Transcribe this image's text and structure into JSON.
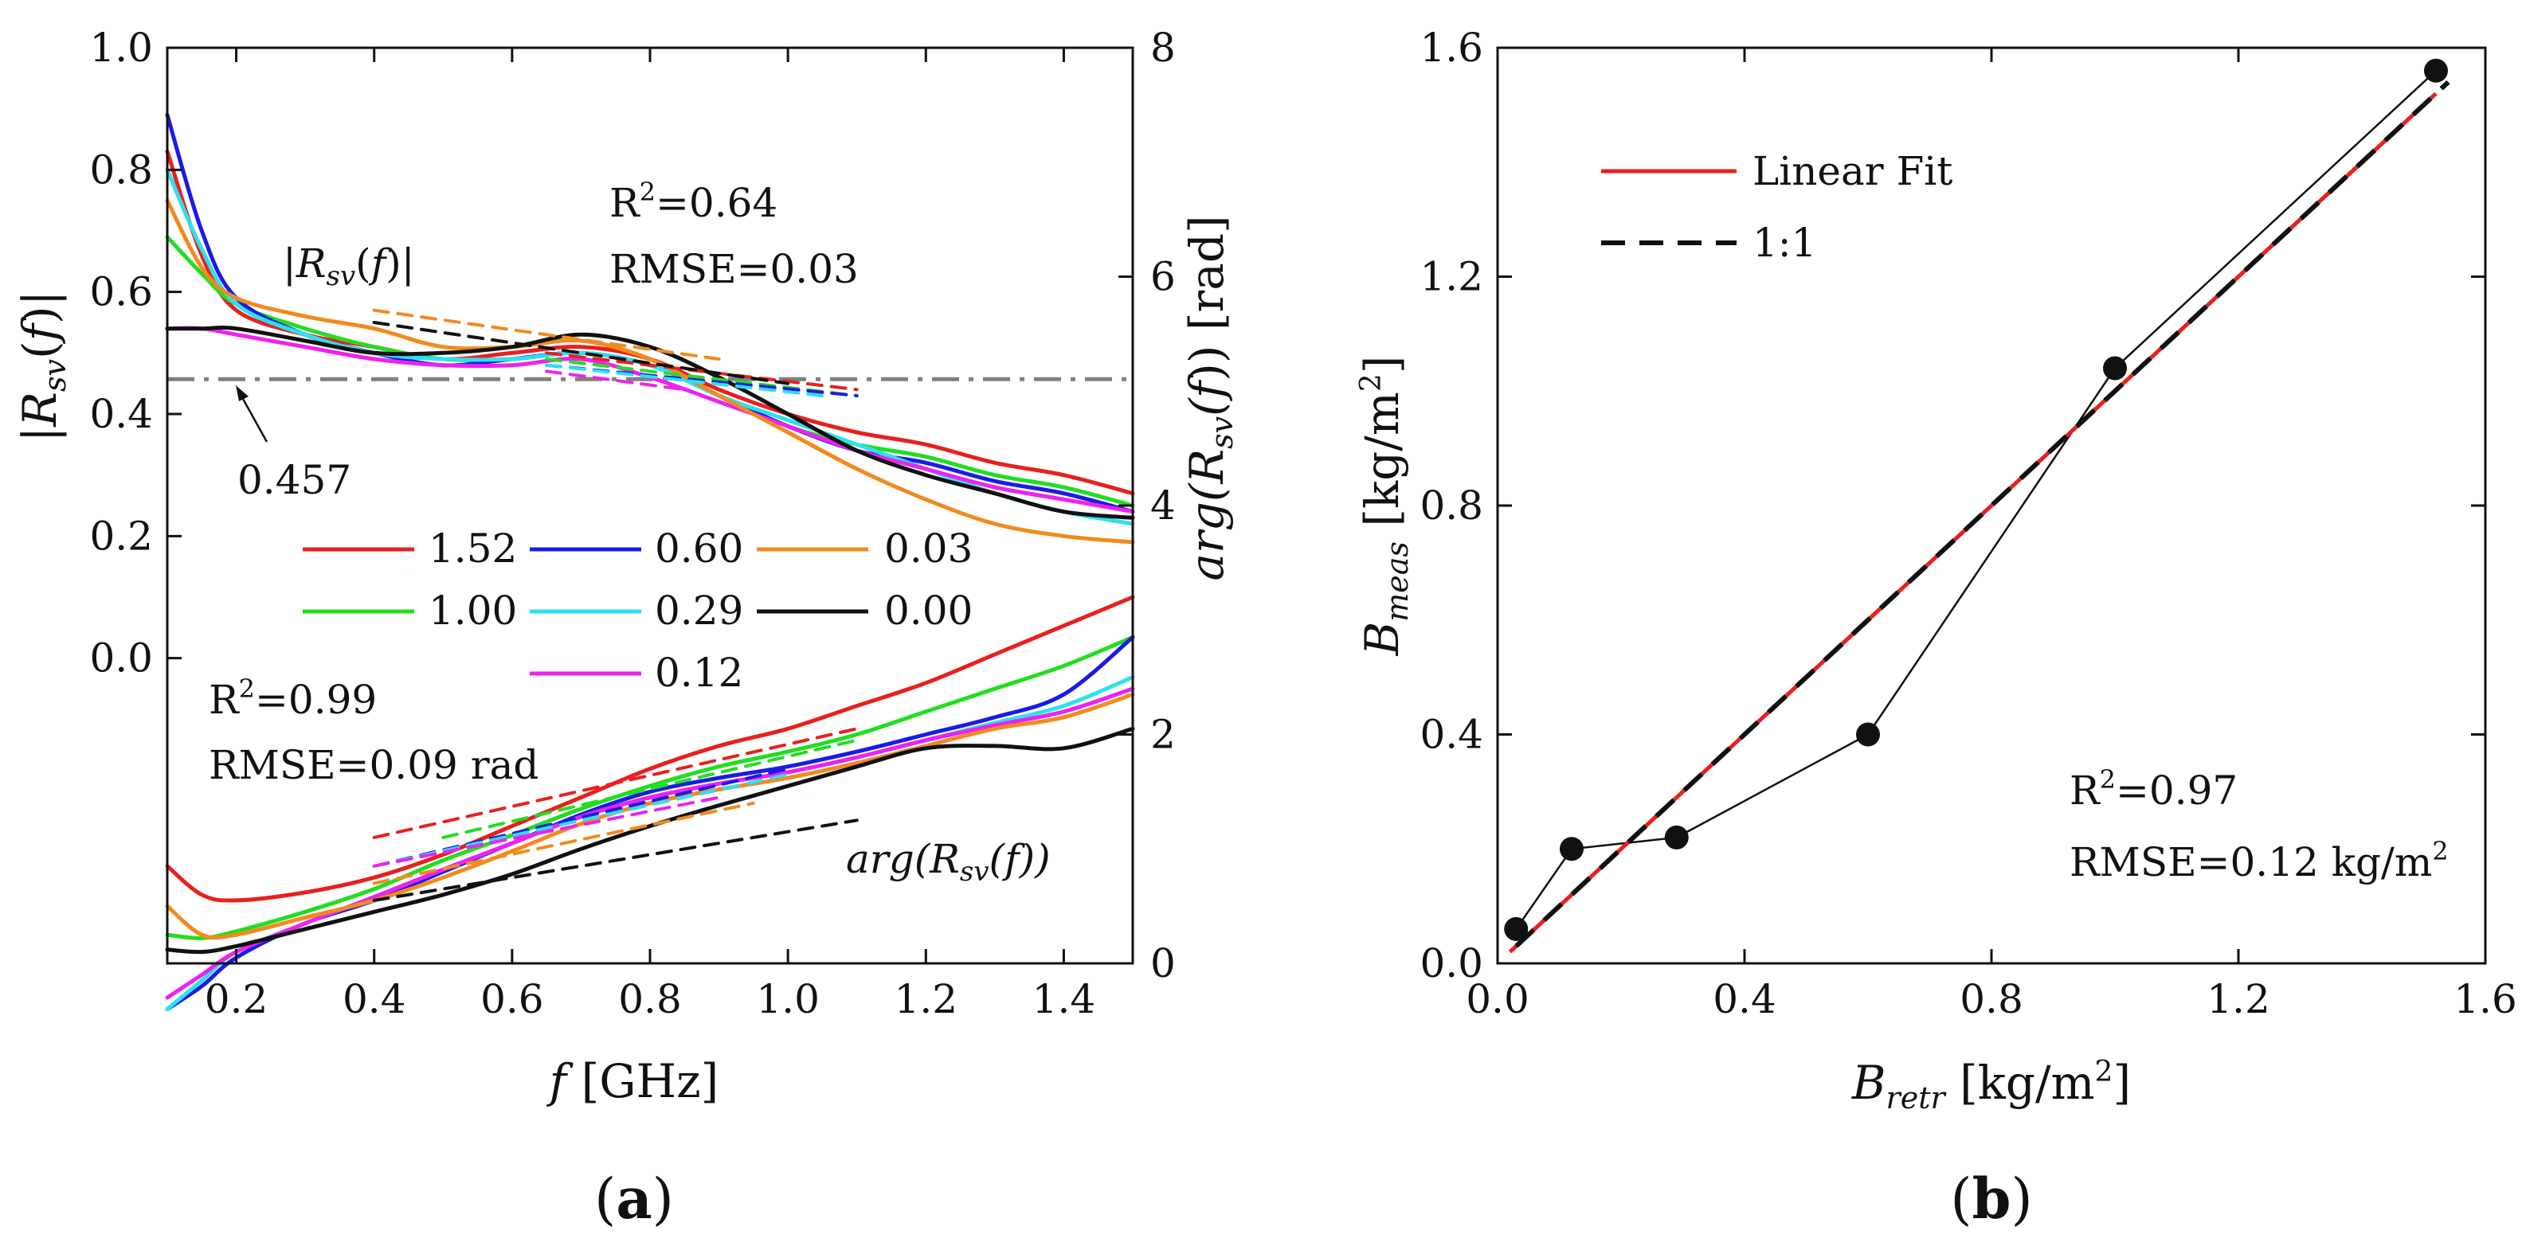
{
  "chart_data": [
    {
      "panel": "(a)",
      "panel_letter": "a",
      "type": "line",
      "xlabel": {
        "italic": "f",
        "rest": " [GHz]"
      },
      "ylabel_left": {
        "pre": "|",
        "base": "R",
        "sub": "sv",
        "mid": "(",
        "italic": "f",
        "post": ")|"
      },
      "ylabel_right": {
        "pre": "arg(",
        "base": "R",
        "sub": "sv",
        "mid": "(",
        "italic": "f",
        "post": ")) [rad]"
      },
      "x_ticks": [
        "0.2",
        "0.4",
        "0.6",
        "0.8",
        "1.0",
        "1.2",
        "1.4"
      ],
      "x_tick_values": [
        0.2,
        0.4,
        0.6,
        0.8,
        1.0,
        1.2,
        1.4
      ],
      "xlim": [
        0.1,
        1.5
      ],
      "y_left_ticks": [
        "1.0",
        "0.8",
        "0.6",
        "0.4",
        "0.2",
        "0.0"
      ],
      "y_left_tick_values": [
        1.0,
        0.8,
        0.6,
        0.4,
        0.2,
        0.0
      ],
      "y_left_lim": [
        -0.5,
        1.0
      ],
      "y_right_ticks": [
        "8",
        "6",
        "4",
        "2",
        "0"
      ],
      "y_right_tick_values": [
        8,
        6,
        4,
        2,
        0
      ],
      "y_right_lim": [
        0,
        8
      ],
      "reference_line": {
        "value": 0.457,
        "label": "0.457"
      },
      "annotations": {
        "mag_label": {
          "pre": "|",
          "base": "R",
          "sub": "sv",
          "mid": "(",
          "italic": "f",
          "post": ")|"
        },
        "mag_r2": {
          "pre": "R",
          "sup": "2",
          "post": "=0.64"
        },
        "mag_rmse": "RMSE=0.03",
        "phase_r2": {
          "pre": "R",
          "sup": "2",
          "post": "=0.99"
        },
        "phase_rmse": "RMSE=0.09 rad",
        "phase_label": {
          "pre": "arg(",
          "base": "R",
          "sub": "sv",
          "mid": "(",
          "italic": "f",
          "post": "))"
        }
      },
      "legend": [
        {
          "name": "1.52",
          "color": "#e8201e"
        },
        {
          "name": "0.60",
          "color": "#1b1be6"
        },
        {
          "name": "0.03",
          "color": "#f28a1e"
        },
        {
          "name": "1.00",
          "color": "#22dd22"
        },
        {
          "name": "0.29",
          "color": "#2ee0f0"
        },
        {
          "name": "0.00",
          "color": "#111111"
        },
        {
          "name": "0.12",
          "color": "#ee22ee"
        }
      ],
      "magnitude_series": [
        {
          "name": "1.52",
          "color": "#e8201e",
          "x": [
            0.1,
            0.15,
            0.2,
            0.3,
            0.4,
            0.5,
            0.6,
            0.7,
            0.8,
            0.9,
            1.0,
            1.1,
            1.2,
            1.3,
            1.4,
            1.5
          ],
          "y": [
            0.83,
            0.66,
            0.57,
            0.53,
            0.51,
            0.49,
            0.5,
            0.51,
            0.49,
            0.44,
            0.4,
            0.37,
            0.35,
            0.32,
            0.3,
            0.27
          ]
        },
        {
          "name": "1.00",
          "color": "#22dd22",
          "x": [
            0.1,
            0.15,
            0.2,
            0.3,
            0.4,
            0.5,
            0.6,
            0.7,
            0.8,
            0.9,
            1.0,
            1.1,
            1.2,
            1.3,
            1.4,
            1.5
          ],
          "y": [
            0.69,
            0.63,
            0.58,
            0.54,
            0.51,
            0.49,
            0.49,
            0.5,
            0.48,
            0.43,
            0.38,
            0.35,
            0.33,
            0.3,
            0.28,
            0.25
          ]
        },
        {
          "name": "0.60",
          "color": "#1b1be6",
          "x": [
            0.1,
            0.15,
            0.2,
            0.3,
            0.4,
            0.5,
            0.6,
            0.7,
            0.8,
            0.9,
            1.0,
            1.1,
            1.2,
            1.3,
            1.4,
            1.5
          ],
          "y": [
            0.89,
            0.7,
            0.59,
            0.53,
            0.5,
            0.48,
            0.49,
            0.5,
            0.48,
            0.43,
            0.38,
            0.34,
            0.32,
            0.29,
            0.27,
            0.24
          ]
        },
        {
          "name": "0.29",
          "color": "#2ee0f0",
          "x": [
            0.1,
            0.15,
            0.2,
            0.3,
            0.4,
            0.5,
            0.6,
            0.7,
            0.8,
            0.9,
            1.0,
            1.1,
            1.2,
            1.3,
            1.4,
            1.5
          ],
          "y": [
            0.8,
            0.67,
            0.58,
            0.53,
            0.5,
            0.49,
            0.49,
            0.5,
            0.48,
            0.43,
            0.39,
            0.35,
            0.31,
            0.27,
            0.24,
            0.22
          ]
        },
        {
          "name": "0.12",
          "color": "#ee22ee",
          "x": [
            0.1,
            0.15,
            0.2,
            0.3,
            0.4,
            0.5,
            0.6,
            0.7,
            0.8,
            0.9,
            1.0,
            1.1,
            1.2,
            1.3,
            1.4,
            1.5
          ],
          "y": [
            0.54,
            0.54,
            0.53,
            0.51,
            0.49,
            0.48,
            0.48,
            0.49,
            0.46,
            0.42,
            0.38,
            0.34,
            0.31,
            0.28,
            0.26,
            0.24
          ]
        },
        {
          "name": "0.03",
          "color": "#f28a1e",
          "x": [
            0.1,
            0.15,
            0.2,
            0.3,
            0.4,
            0.5,
            0.6,
            0.7,
            0.8,
            0.9,
            1.0,
            1.1,
            1.2,
            1.3,
            1.4,
            1.5
          ],
          "y": [
            0.75,
            0.64,
            0.59,
            0.56,
            0.54,
            0.51,
            0.51,
            0.52,
            0.49,
            0.43,
            0.37,
            0.31,
            0.26,
            0.22,
            0.2,
            0.19
          ]
        },
        {
          "name": "0.00",
          "color": "#111111",
          "x": [
            0.1,
            0.15,
            0.2,
            0.3,
            0.4,
            0.5,
            0.6,
            0.7,
            0.8,
            0.9,
            1.0,
            1.1,
            1.2,
            1.3,
            1.4,
            1.5
          ],
          "y": [
            0.54,
            0.54,
            0.54,
            0.52,
            0.5,
            0.5,
            0.51,
            0.53,
            0.51,
            0.46,
            0.4,
            0.34,
            0.3,
            0.27,
            0.24,
            0.23
          ]
        }
      ],
      "magnitude_fits": [
        {
          "name": "1.52",
          "color": "#e8201e",
          "x": [
            0.65,
            1.1
          ],
          "y": [
            0.5,
            0.44
          ]
        },
        {
          "name": "1.00",
          "color": "#22dd22",
          "x": [
            0.65,
            1.1
          ],
          "y": [
            0.49,
            0.43
          ]
        },
        {
          "name": "0.60",
          "color": "#1b1be6",
          "x": [
            0.65,
            1.1
          ],
          "y": [
            0.48,
            0.43
          ]
        },
        {
          "name": "0.29",
          "color": "#2ee0f0",
          "x": [
            0.65,
            1.05
          ],
          "y": [
            0.48,
            0.43
          ]
        },
        {
          "name": "0.12",
          "color": "#ee22ee",
          "x": [
            0.65,
            0.85
          ],
          "y": [
            0.47,
            0.44
          ]
        },
        {
          "name": "0.03",
          "color": "#f28a1e",
          "x": [
            0.4,
            0.9
          ],
          "y": [
            0.57,
            0.49
          ]
        },
        {
          "name": "0.00",
          "color": "#111111",
          "x": [
            0.4,
            1.0
          ],
          "y": [
            0.55,
            0.45
          ]
        }
      ],
      "phase_series": [
        {
          "name": "1.52",
          "color": "#e8201e",
          "x": [
            0.1,
            0.15,
            0.2,
            0.3,
            0.4,
            0.5,
            0.6,
            0.7,
            0.8,
            0.9,
            1.0,
            1.1,
            1.2,
            1.3,
            1.4,
            1.5
          ],
          "y": [
            0.85,
            0.6,
            0.55,
            0.62,
            0.75,
            0.95,
            1.2,
            1.45,
            1.7,
            1.9,
            2.05,
            2.25,
            2.45,
            2.7,
            2.95,
            3.2
          ]
        },
        {
          "name": "1.00",
          "color": "#22dd22",
          "x": [
            0.1,
            0.15,
            0.2,
            0.3,
            0.4,
            0.5,
            0.6,
            0.7,
            0.8,
            0.9,
            1.0,
            1.1,
            1.2,
            1.3,
            1.4,
            1.5
          ],
          "y": [
            0.25,
            0.22,
            0.28,
            0.45,
            0.65,
            0.9,
            1.12,
            1.35,
            1.55,
            1.72,
            1.85,
            2.0,
            2.2,
            2.4,
            2.6,
            2.85
          ]
        },
        {
          "name": "0.60",
          "color": "#1b1be6",
          "x": [
            0.1,
            0.15,
            0.2,
            0.3,
            0.4,
            0.5,
            0.6,
            0.7,
            0.8,
            0.9,
            1.0,
            1.1,
            1.2,
            1.3,
            1.4,
            1.5
          ],
          "y": [
            -0.4,
            -0.2,
            0.05,
            0.35,
            0.55,
            0.8,
            1.05,
            1.3,
            1.5,
            1.62,
            1.72,
            1.85,
            2.0,
            2.15,
            2.35,
            2.85
          ]
        },
        {
          "name": "0.29",
          "color": "#2ee0f0",
          "x": [
            0.1,
            0.15,
            0.2,
            0.3,
            0.4,
            0.5,
            0.6,
            0.7,
            0.8,
            0.9,
            1.0,
            1.1,
            1.2,
            1.3,
            1.4,
            1.5
          ],
          "y": [
            -0.4,
            -0.15,
            0.1,
            0.35,
            0.58,
            0.82,
            1.05,
            1.28,
            1.45,
            1.57,
            1.67,
            1.8,
            1.95,
            2.1,
            2.25,
            2.5
          ]
        },
        {
          "name": "0.12",
          "color": "#ee22ee",
          "x": [
            0.1,
            0.15,
            0.2,
            0.3,
            0.4,
            0.5,
            0.6,
            0.7,
            0.8,
            0.9,
            1.0,
            1.1,
            1.2,
            1.3,
            1.4,
            1.5
          ],
          "y": [
            -0.3,
            -0.1,
            0.1,
            0.35,
            0.58,
            0.82,
            1.05,
            1.28,
            1.45,
            1.57,
            1.67,
            1.8,
            1.95,
            2.08,
            2.2,
            2.4
          ]
        },
        {
          "name": "0.03",
          "color": "#f28a1e",
          "x": [
            0.1,
            0.15,
            0.2,
            0.3,
            0.4,
            0.5,
            0.6,
            0.7,
            0.8,
            0.9,
            1.0,
            1.1,
            1.2,
            1.3,
            1.4,
            1.5
          ],
          "y": [
            0.5,
            0.25,
            0.25,
            0.4,
            0.55,
            0.75,
            0.98,
            1.22,
            1.4,
            1.52,
            1.62,
            1.75,
            1.9,
            2.05,
            2.15,
            2.35
          ]
        },
        {
          "name": "0.00",
          "color": "#111111",
          "x": [
            0.1,
            0.15,
            0.2,
            0.3,
            0.4,
            0.5,
            0.6,
            0.7,
            0.8,
            0.9,
            1.0,
            1.1,
            1.2,
            1.3,
            1.4,
            1.5
          ],
          "y": [
            0.12,
            0.1,
            0.15,
            0.3,
            0.45,
            0.6,
            0.78,
            1.0,
            1.2,
            1.38,
            1.55,
            1.72,
            1.88,
            1.9,
            1.88,
            2.05
          ]
        }
      ],
      "phase_fits": [
        {
          "name": "1.52",
          "color": "#e8201e",
          "x": [
            0.4,
            1.1
          ],
          "y": [
            1.1,
            2.05
          ]
        },
        {
          "name": "1.00",
          "color": "#22dd22",
          "x": [
            0.5,
            1.1
          ],
          "y": [
            1.1,
            1.95
          ]
        },
        {
          "name": "0.60",
          "color": "#1b1be6",
          "x": [
            0.4,
            1.0
          ],
          "y": [
            0.85,
            1.7
          ]
        },
        {
          "name": "0.29",
          "color": "#2ee0f0",
          "x": [
            0.4,
            1.0
          ],
          "y": [
            0.85,
            1.65
          ]
        },
        {
          "name": "0.12",
          "color": "#ee22ee",
          "x": [
            0.4,
            0.9
          ],
          "y": [
            0.85,
            1.45
          ]
        },
        {
          "name": "0.03",
          "color": "#f28a1e",
          "x": [
            0.4,
            0.95
          ],
          "y": [
            0.7,
            1.4
          ]
        },
        {
          "name": "0.00",
          "color": "#111111",
          "x": [
            0.4,
            1.1
          ],
          "y": [
            0.55,
            1.25
          ]
        }
      ]
    },
    {
      "panel": "(b)",
      "panel_letter": "b",
      "type": "scatter",
      "xlabel": {
        "base": "B",
        "sub": "retr",
        "rest": " [kg/m",
        "sup": "2",
        "end": "]"
      },
      "ylabel": {
        "base": "B",
        "sub": "meas",
        "rest": " [kg/m",
        "sup": "2",
        "end": "]"
      },
      "x_ticks": [
        "0.0",
        "0.4",
        "0.8",
        "1.2",
        "1.6"
      ],
      "x_tick_values": [
        0.0,
        0.4,
        0.8,
        1.2,
        1.6
      ],
      "y_ticks": [
        "1.6",
        "1.2",
        "0.8",
        "0.4",
        "0.0"
      ],
      "y_tick_values": [
        1.6,
        1.2,
        0.8,
        0.4,
        0.0
      ],
      "xlim": [
        0.0,
        1.6
      ],
      "ylim": [
        0.0,
        1.6
      ],
      "points": {
        "x": [
          0.03,
          0.12,
          0.29,
          0.6,
          1.0,
          1.52
        ],
        "y": [
          0.06,
          0.2,
          0.22,
          0.4,
          1.04,
          1.56
        ]
      },
      "linear_fit": {
        "name": "Linear Fit",
        "color": "#e8201e",
        "x": [
          0.02,
          1.52
        ],
        "y": [
          0.02,
          1.52
        ]
      },
      "identity": {
        "name": "1:1",
        "color": "#111111",
        "x": [
          0.03,
          1.54
        ],
        "y": [
          0.03,
          1.54
        ]
      },
      "legend": [
        "Linear Fit",
        "1:1"
      ],
      "annotations": {
        "r2": {
          "pre": "R",
          "sup": "2",
          "post": "=0.97"
        },
        "rmse": {
          "pre": "RMSE=0.12 kg/m",
          "sup": "2"
        }
      }
    }
  ]
}
